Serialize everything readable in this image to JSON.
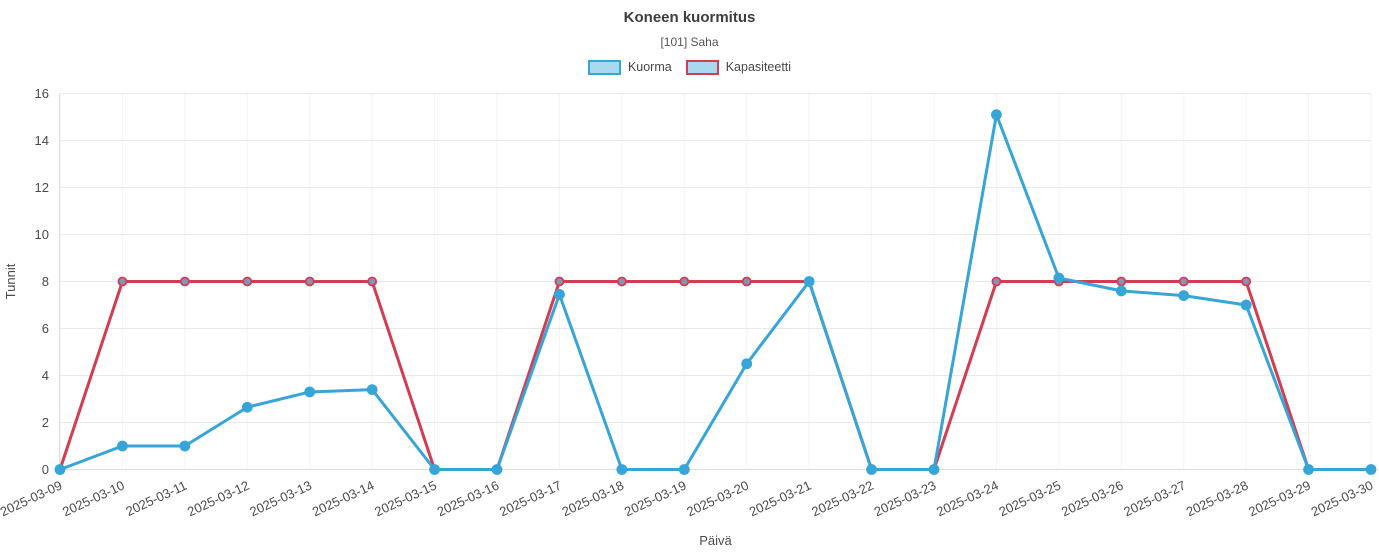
{
  "header": {
    "title": "Koneen kuormitus",
    "subtitle": "[101] Saha"
  },
  "legend": [
    {
      "label": "Kuorma",
      "fill": "#a9d9ef",
      "border": "#36a5d7"
    },
    {
      "label": "Kapasiteetti",
      "fill": "#a9d9ef",
      "border": "#d43d51"
    }
  ],
  "colors": {
    "kuorma_line": "#36a5d7",
    "kapasiteetti_line": "#d43d51",
    "kapasiteetti_point_fill": "#7e97b8",
    "grid_h": "#e9e9e9",
    "grid_v": "#f3f3f3",
    "axis": "#dcdcdc",
    "tick_text": "#4b4b4b"
  },
  "chart_data": {
    "type": "line",
    "title": "Koneen kuormitus",
    "subtitle": "[101] Saha",
    "xlabel": "Päivä",
    "ylabel": "Tunnit",
    "ylim": [
      0,
      16
    ],
    "ytick_step": 2,
    "grid": true,
    "legend_position": "top",
    "x_label_rotation": -25,
    "categories": [
      "2025-03-09",
      "2025-03-10",
      "2025-03-11",
      "2025-03-12",
      "2025-03-13",
      "2025-03-14",
      "2025-03-15",
      "2025-03-16",
      "2025-03-17",
      "2025-03-18",
      "2025-03-19",
      "2025-03-20",
      "2025-03-21",
      "2025-03-22",
      "2025-03-23",
      "2025-03-24",
      "2025-03-25",
      "2025-03-26",
      "2025-03-27",
      "2025-03-28",
      "2025-03-29",
      "2025-03-30"
    ],
    "series": [
      {
        "name": "Kuorma",
        "color": "#36a5d7",
        "point_fill": "#36a5d7",
        "point_stroke": "#36a5d7",
        "point_radius": 4.5,
        "values": [
          0,
          1,
          1,
          2.65,
          3.3,
          3.4,
          0,
          0,
          7.45,
          0,
          0,
          4.5,
          8,
          0,
          0,
          15.1,
          8.15,
          7.6,
          7.4,
          7.0,
          0,
          0
        ]
      },
      {
        "name": "Kapasiteetti",
        "color": "#d43d51",
        "point_fill": "#7e97b8",
        "point_stroke": "#d43d51",
        "point_radius": 4,
        "values": [
          0,
          8,
          8,
          8,
          8,
          8,
          0,
          0,
          8,
          8,
          8,
          8,
          8,
          0,
          0,
          8,
          8,
          8,
          8,
          8,
          0,
          0
        ]
      }
    ]
  }
}
